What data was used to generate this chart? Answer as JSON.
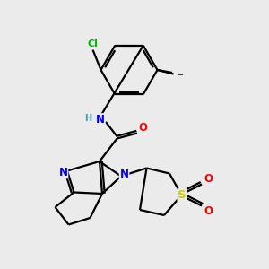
{
  "background_color": "#ebebeb",
  "bond_color": "#000000",
  "atom_colors": {
    "N": "#0000ff",
    "O": "#ff0000",
    "S": "#cccc00",
    "Cl": "#00bb00",
    "H": "#4499aa",
    "C": "#000000"
  }
}
